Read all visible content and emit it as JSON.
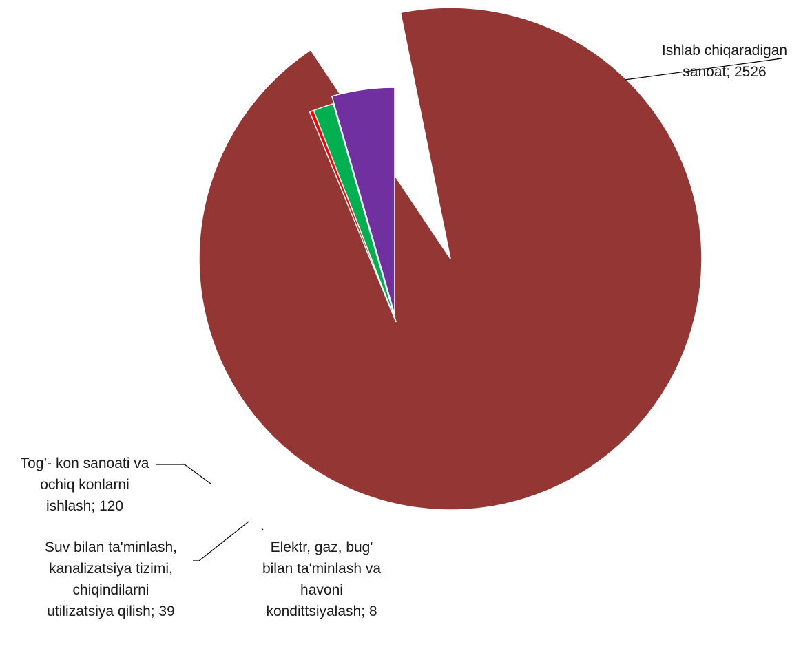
{
  "chart_data": {
    "type": "pie",
    "title": "",
    "exploded": true,
    "slices": [
      {
        "name": "Ishlab chiqaradigan sanoat",
        "value": 2526,
        "color": "#943634",
        "label_lines": [
          "Ishlab chiqaradigan",
          "sanoat; 2526"
        ]
      },
      {
        "name": "Elektr, gaz, bug' bilan ta'minlash va havoni kondittsiyalash",
        "value": 8,
        "color": "#ff0000",
        "label_lines": [
          "Elektr, gaz, bug'",
          "bilan ta'minlash va",
          "havoni",
          "kondittsiyalash; 8"
        ]
      },
      {
        "name": "Suv bilan ta'minlash, kanalizatsiya tizimi, chiqindilarni utilizatsiya qilish",
        "value": 39,
        "color": "#00b050",
        "label_lines": [
          "Suv bilan ta'minlash,",
          "kanalizatsiya tizimi,",
          "chiqindilarni",
          "utilizatsiya qilish; 39"
        ]
      },
      {
        "name": "Tog’- kon sanoati va ochiq konlarni ishlash",
        "value": 120,
        "color": "#7030a0",
        "label_lines": [
          "Tog’- kon sanoati va",
          "ochiq konlarni",
          "ishlash; 120"
        ]
      }
    ]
  }
}
